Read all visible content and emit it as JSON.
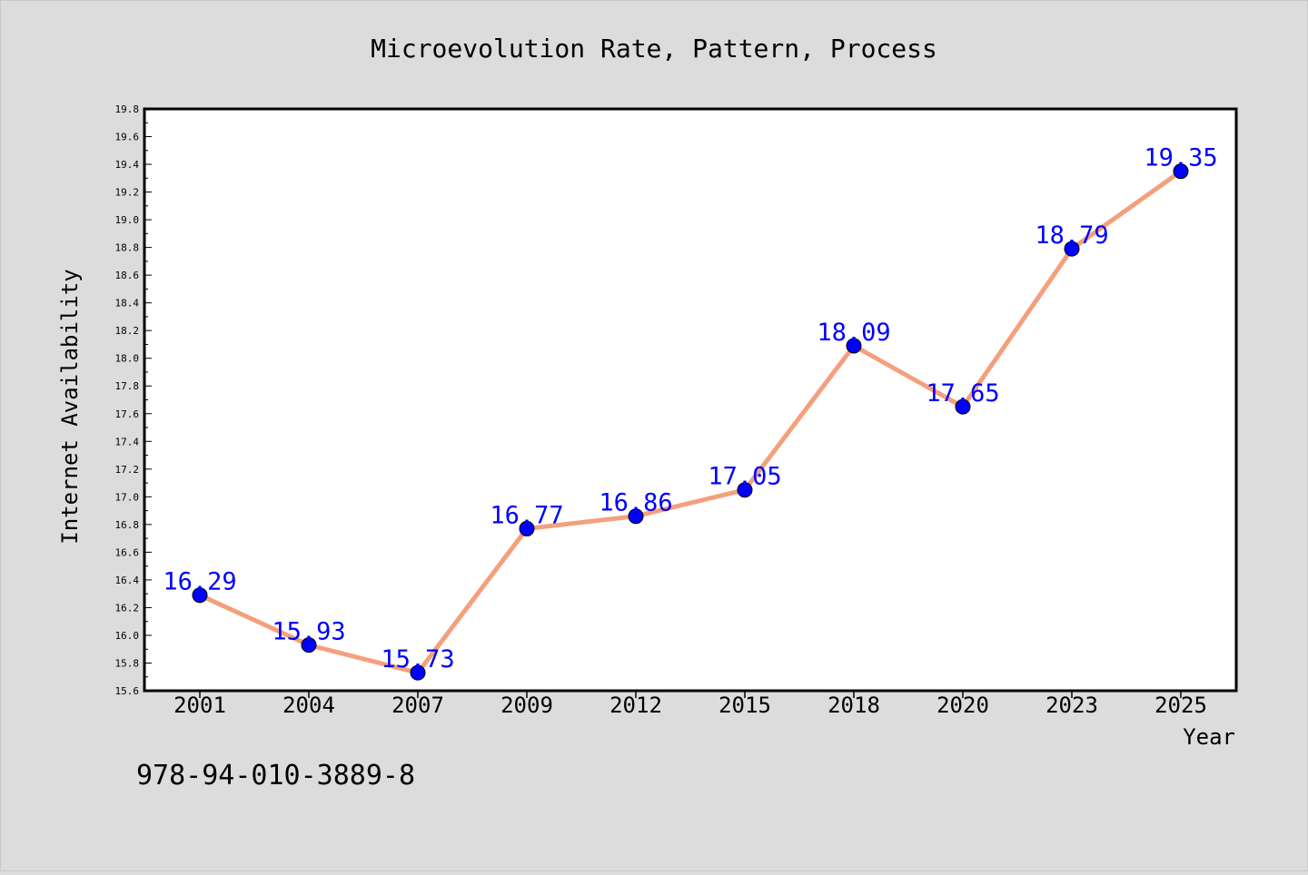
{
  "chart_data": {
    "type": "line",
    "title": "Microevolution Rate, Pattern, Process",
    "xlabel": "Year",
    "ylabel": "Internet Availability",
    "categories": [
      "2001",
      "2004",
      "2007",
      "2009",
      "2012",
      "2015",
      "2018",
      "2020",
      "2023",
      "2025"
    ],
    "series": [
      {
        "values": [
          16.29,
          15.93,
          15.73,
          16.77,
          16.86,
          17.05,
          18.09,
          17.65,
          18.79,
          19.35
        ]
      }
    ],
    "ylim": [
      15.6,
      19.8
    ],
    "yticks": [
      "15.6",
      "15.8",
      "16.0",
      "16.2",
      "16.4",
      "16.6",
      "16.8",
      "17.0",
      "17.2",
      "17.4",
      "17.6",
      "17.8",
      "18.0",
      "18.2",
      "18.4",
      "18.6",
      "18.8",
      "19.0",
      "19.2",
      "19.4",
      "19.6",
      "19.8"
    ],
    "data_labels": [
      "16.29",
      "15.93",
      "15.73",
      "16.77",
      "16.86",
      "17.05",
      "18.09",
      "17.65",
      "18.79",
      "19.35"
    ],
    "grid": false,
    "legend": "none",
    "colors": {
      "line": "#f4a07c",
      "marker": "#0000ff",
      "label": "#0000ff",
      "background": "#dcdcdc",
      "plot_area": "#ffffff"
    }
  },
  "footer_text": "978-94-010-3889-8"
}
